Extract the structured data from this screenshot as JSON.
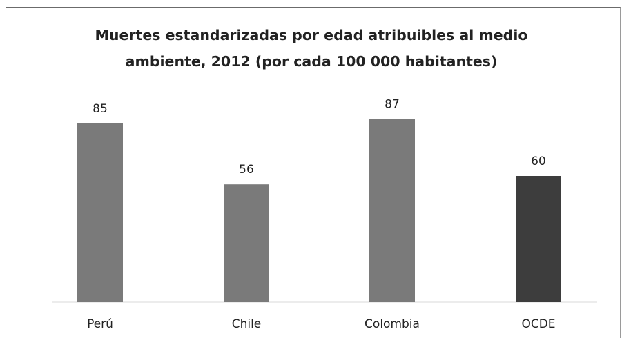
{
  "chart_data": {
    "type": "bar",
    "title": "Muertes estandarizadas por edad atribuibles al medio ambiente, 2012 (por cada 100 000 habitantes)",
    "title_lines": [
      "Muertes estandarizadas por edad atribuibles al medio",
      "ambiente, 2012 (por cada 100 000 habitantes)"
    ],
    "categories": [
      "Perú",
      "Chile",
      "Colombia",
      "OCDE"
    ],
    "values": [
      85,
      56,
      87,
      60
    ],
    "value_labels": [
      "85",
      "56",
      "87",
      "60"
    ],
    "colors": [
      "#7a7a7a",
      "#7a7a7a",
      "#7a7a7a",
      "#3d3d3d"
    ],
    "xlabel": "",
    "ylabel": "",
    "ylim": [
      0,
      100
    ],
    "grid": false,
    "legend": "none"
  }
}
